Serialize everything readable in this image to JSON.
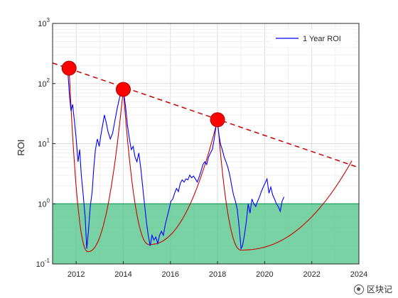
{
  "chart_data": {
    "type": "line",
    "title": "",
    "xlabel": "",
    "ylabel": "ROI",
    "yscale": "log",
    "xlim": [
      2011,
      2024
    ],
    "ylim": [
      0.1,
      1000
    ],
    "x_ticks": [
      "2012",
      "2014",
      "2016",
      "2018",
      "2020",
      "2022",
      "2024"
    ],
    "y_ticks": [
      {
        "base": "10",
        "exp": "-1"
      },
      {
        "base": "10",
        "exp": "0"
      },
      {
        "base": "10",
        "exp": "1"
      },
      {
        "base": "10",
        "exp": "2"
      },
      {
        "base": "10",
        "exp": "3"
      }
    ],
    "grid": true,
    "legend_position": "top-right",
    "series": [
      {
        "name": "1 Year ROI",
        "color": "#0000ff",
        "points": [
          [
            2011.65,
            150
          ],
          [
            2011.72,
            60
          ],
          [
            2011.78,
            35
          ],
          [
            2011.85,
            45
          ],
          [
            2011.92,
            25
          ],
          [
            2012.0,
            12
          ],
          [
            2012.08,
            5
          ],
          [
            2012.15,
            8
          ],
          [
            2012.22,
            3
          ],
          [
            2012.3,
            1.4
          ],
          [
            2012.38,
            0.6
          ],
          [
            2012.45,
            0.18
          ],
          [
            2012.52,
            0.35
          ],
          [
            2012.6,
            0.9
          ],
          [
            2012.68,
            1.6
          ],
          [
            2012.75,
            4
          ],
          [
            2012.82,
            8
          ],
          [
            2012.9,
            12
          ],
          [
            2012.98,
            9
          ],
          [
            2013.05,
            14
          ],
          [
            2013.12,
            20
          ],
          [
            2013.2,
            30
          ],
          [
            2013.28,
            22
          ],
          [
            2013.35,
            16
          ],
          [
            2013.45,
            12
          ],
          [
            2013.55,
            15
          ],
          [
            2013.65,
            25
          ],
          [
            2013.75,
            40
          ],
          [
            2013.85,
            60
          ],
          [
            2013.95,
            90
          ],
          [
            2014.02,
            70
          ],
          [
            2014.1,
            40
          ],
          [
            2014.18,
            20
          ],
          [
            2014.26,
            12
          ],
          [
            2014.34,
            8
          ],
          [
            2014.42,
            9
          ],
          [
            2014.5,
            6
          ],
          [
            2014.58,
            5
          ],
          [
            2014.66,
            7
          ],
          [
            2014.74,
            4
          ],
          [
            2014.82,
            2
          ],
          [
            2014.9,
            1
          ],
          [
            2014.98,
            0.5
          ],
          [
            2015.06,
            0.3
          ],
          [
            2015.14,
            0.2
          ],
          [
            2015.22,
            0.3
          ],
          [
            2015.3,
            0.25
          ],
          [
            2015.38,
            0.28
          ],
          [
            2015.46,
            0.22
          ],
          [
            2015.54,
            0.3
          ],
          [
            2015.62,
            0.35
          ],
          [
            2015.7,
            0.3
          ],
          [
            2015.78,
            0.45
          ],
          [
            2015.86,
            0.6
          ],
          [
            2015.94,
            0.8
          ],
          [
            2016.02,
            1.1
          ],
          [
            2016.1,
            1.2
          ],
          [
            2016.18,
            1.5
          ],
          [
            2016.26,
            1.8
          ],
          [
            2016.34,
            1.6
          ],
          [
            2016.42,
            2.2
          ],
          [
            2016.5,
            2.5
          ],
          [
            2016.58,
            2.3
          ],
          [
            2016.66,
            2.6
          ],
          [
            2016.74,
            2.5
          ],
          [
            2016.82,
            3.0
          ],
          [
            2016.9,
            2.7
          ],
          [
            2016.98,
            2.9
          ],
          [
            2017.06,
            2.6
          ],
          [
            2017.14,
            2.3
          ],
          [
            2017.22,
            2.8
          ],
          [
            2017.3,
            3.5
          ],
          [
            2017.38,
            4.5
          ],
          [
            2017.46,
            5
          ],
          [
            2017.54,
            4.5
          ],
          [
            2017.62,
            6
          ],
          [
            2017.7,
            7
          ],
          [
            2017.78,
            8
          ],
          [
            2017.86,
            12
          ],
          [
            2017.94,
            20
          ],
          [
            2018.0,
            22
          ],
          [
            2018.06,
            14
          ],
          [
            2018.12,
            10
          ],
          [
            2018.2,
            8
          ],
          [
            2018.28,
            6
          ],
          [
            2018.36,
            5
          ],
          [
            2018.44,
            4
          ],
          [
            2018.52,
            3
          ],
          [
            2018.6,
            2
          ],
          [
            2018.68,
            1.4
          ],
          [
            2018.76,
            1.1
          ],
          [
            2018.84,
            0.8
          ],
          [
            2018.92,
            0.4
          ],
          [
            2019.0,
            0.18
          ],
          [
            2019.06,
            0.2
          ],
          [
            2019.14,
            0.3
          ],
          [
            2019.22,
            0.5
          ],
          [
            2019.3,
            1.0
          ],
          [
            2019.38,
            0.7
          ],
          [
            2019.46,
            1.2
          ],
          [
            2019.54,
            1.0
          ],
          [
            2019.62,
            0.9
          ],
          [
            2019.7,
            1.1
          ],
          [
            2019.78,
            1.3
          ],
          [
            2019.86,
            1.6
          ],
          [
            2019.94,
            1.9
          ],
          [
            2020.02,
            2.2
          ],
          [
            2020.1,
            2.6
          ],
          [
            2020.18,
            1.5
          ],
          [
            2020.26,
            1.9
          ],
          [
            2020.34,
            1.4
          ],
          [
            2020.42,
            1.2
          ],
          [
            2020.5,
            1.0
          ],
          [
            2020.58,
            0.9
          ],
          [
            2020.66,
            0.75
          ],
          [
            2020.74,
            1.1
          ],
          [
            2020.82,
            1.3
          ]
        ]
      }
    ],
    "overlay_trend_peak_line": {
      "color": "#cc0000",
      "style": "dashed",
      "points": [
        [
          2011,
          220
        ],
        [
          2024,
          4
        ]
      ]
    },
    "overlay_cycle_curve": {
      "color": "#cc0000",
      "style": "solid"
    },
    "peak_markers": [
      [
        2011.7,
        180
      ],
      [
        2014.0,
        80
      ],
      [
        2018.0,
        25
      ]
    ],
    "green_band": {
      "y_min": 0.1,
      "y_max": 1,
      "color": "#58c78d"
    }
  },
  "watermark": {
    "text": "区块记"
  }
}
